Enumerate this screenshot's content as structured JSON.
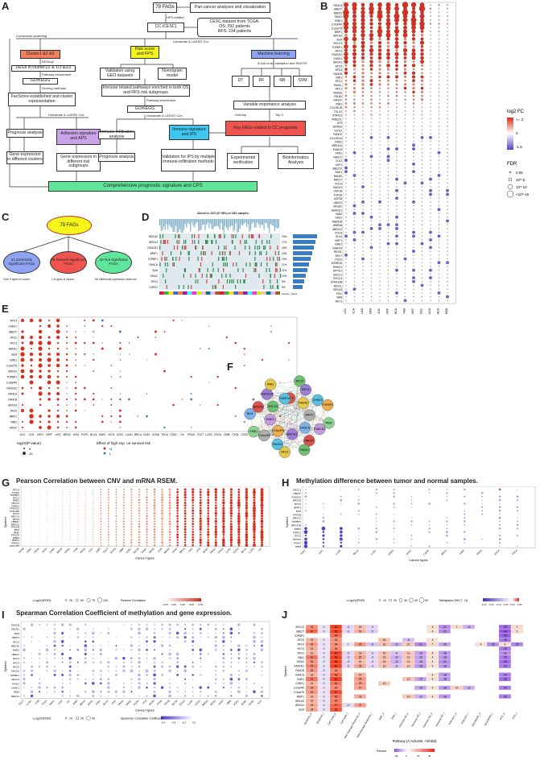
{
  "panels": {
    "A": "A",
    "B": "B",
    "C": "C",
    "D": "D",
    "E": "E",
    "F": "F",
    "G": "G",
    "H": "H",
    "I": "I",
    "J": "J"
  },
  "flow": {
    "top": "79 FAGs",
    "pancancer": "Pan-cancer analyses and visualization",
    "hpv": "HPV-related",
    "cc": "CC (CESC)",
    "tcga": "CESC dataset from TCGA:\nOS: 292 patients\nRFS: 234 patients",
    "consensus": "Consensus clustering",
    "uni_lasso1": "Univariate & LASSO Cox",
    "cluster": "Cluster1 &2 &3",
    "riskscore": "Risk score and FPS",
    "ml": "Machine learning",
    "cv": "5-fold cross validation and SMOTE",
    "deseq": "DESeq2",
    "degs": "DEGs in cluster1/2 & 1/3 &2/3",
    "pathway1": "Pathway enrichment",
    "gokegg1": "GO/KEGG",
    "scoring": "Scoring methods",
    "facscore": "FacScore established and cluster representation",
    "uni_lasso2": "Univariate & LASSO Cox",
    "validation_geo": "Validation using GEO datasets",
    "nomogram": "Nomogram model",
    "immune_related": "Immune related pathways enriched in both OS and RFS risk subgroups",
    "pathway2": "Pathway enrichment",
    "gokegg2": "GO/KEGG",
    "uni_lasso3": "Univariate & LASSO Cox",
    "dt": "DT",
    "rf": "RF",
    "nb": "NB",
    "svm": "SVM",
    "varimp": "Variable importance analysis",
    "overlap": "Overlap",
    "top3": "Top 3",
    "key_fags": "Key FAGs related to CC prognosis",
    "prognosis1": "Prognosis analysis",
    "adhesion": "Adhesion signature and APS",
    "immune_infil": "Immune infiltration analysis",
    "immune_sig": "Immune signature and IPS",
    "expgene1": "Gene expression in different clusters",
    "expgene2": "Gene expression in different risk subgroups",
    "prognosis2": "Prognosis analysis",
    "validation_ips": "Validation for IPS by multiple immune infiltration methods",
    "experimental": "Experimental verification",
    "bioinfo": "Bioinformatics Analysis",
    "comprehensive": "Comprehensive prognostic signature and CPS"
  },
  "panelC": {
    "center": "79 FAGs",
    "left": "21 Extremely significant FAGs",
    "mid": "48 General significant FAGs",
    "right": "10 Not significant FAGs",
    "left_note": "Over 9 types of cancer",
    "mid_note": "1-8 types of cancer",
    "right_note": "No differential expression observed"
  },
  "panelD": {
    "title": "Altered in 1197 (87.98%) of 1361 samples.",
    "genes": [
      "BRCA2",
      "BRCA1",
      "FANCD2",
      "BRIP1",
      "TOPBP1",
      "FANCA",
      "BLM",
      "FANCI",
      "RFC4",
      "CHEK1"
    ],
    "pcts": [
      "20%",
      "17%",
      "15%",
      "13%",
      "12%",
      "11%",
      "11%",
      "10%",
      "9%",
      "9%"
    ],
    "side_label": "Cancer_Types"
  },
  "panelB": {
    "genes": [
      "FANCA",
      "UBE2T",
      "RAD51",
      "FANCI",
      "EME1",
      "C19orf40",
      "C16orf75",
      "BRIP1",
      "BRCA2",
      "BLM",
      "XRCC3",
      "TOPBP1",
      "RFC4",
      "FANCD2",
      "CHEK1",
      "BRCA1",
      "RFC5",
      "RFC3",
      "FANCB",
      "RMI1",
      "RFC2",
      "FANCL",
      "RFC1",
      "RAD9A",
      "PALB2",
      "FANCF",
      "RMI2",
      "DCLRE1B",
      "TELO2",
      "STRA13",
      "PMS2CL",
      "ATR",
      "ZBTB32",
      "GIYD2",
      "FANCE",
      "DCLRE1A",
      "PMS2",
      "MRE11A",
      "FANCM",
      "FAN1",
      "FANCC",
      "CLK2",
      "USP1",
      "UBE2T2",
      "RAD1",
      "RAD50",
      "RAD17",
      "POLH",
      "BACH1",
      "USP1B",
      "TOP3A",
      "USP28",
      "UBAX2",
      "MUS81",
      "NSMCE1",
      "XAB2",
      "HUS1",
      "RAD51B",
      "WDR48",
      "UBE2V2",
      "POLN",
      "SLX4",
      "MHF1",
      "EME2",
      "FAAP24",
      "REV3L",
      "REV7",
      "POLK",
      "MTMR15",
      "RHNO1",
      "APITD1",
      "ERCC1",
      "ERCC4",
      "STRA13B",
      "REV1L",
      "BRCA3",
      "POLI",
      "NBN",
      "REV1"
    ],
    "cancers": [
      "LUSC",
      "BLCA",
      "LUAD",
      "COAD",
      "LIHC",
      "KIRP",
      "BRCA",
      "STAD",
      "KIRC",
      "HNSC",
      "KICH",
      "THCA",
      "PRAD"
    ],
    "legend_fc": "log2 FC",
    "legend_fc_hi": ">= 3",
    "legend_fc_mid": "0",
    "legend_fc_lo": "-1.5",
    "legend_fdr": "FDR",
    "legend_fdr_vals": [
      "0.05",
      "10^-5",
      "10^-10",
      "<10^-15"
    ]
  },
  "panelE": {
    "genes": [
      "RFC4",
      "CHEK1",
      "UBE2T",
      "RFC2",
      "RFC3",
      "RAD51",
      "BLM",
      "EME1",
      "C16orf75",
      "BRCA1",
      "TOPBP1",
      "C19orf40",
      "FANCD2",
      "FANCA",
      "FANCB",
      "BRCA2",
      "RFC5",
      "BRIP1",
      "RMI2",
      "FANCI"
    ],
    "cancers": [
      "ACC",
      "LGG",
      "KIRC",
      "KIRP",
      "LIHC",
      "MESO",
      "UVM",
      "PCPG",
      "BLCA",
      "SARC",
      "KICH",
      "UCEC",
      "LUAD",
      "BRCA",
      "DLBC",
      "COAD",
      "THCA",
      "STAD",
      "OV",
      "PRAD",
      "TGCT",
      "LUSC",
      "ESCA",
      "GBM",
      "CHOL",
      "CESC",
      "PAAD",
      "THYM",
      "READ",
      "UCS",
      "SKCM"
    ],
    "legend_size": "-log10(P-value)",
    "legend_size_vals": [
      "5",
      "10"
    ],
    "legend_effect": "Effect of high exp. on survival risk",
    "legend_effect_vals": [
      "H",
      "L"
    ]
  },
  "panelF": {
    "nodes": [
      "RFC3",
      "RFC5",
      "RFC4",
      "RAD51",
      "CHEK1",
      "TOPBP1",
      "BRIP1",
      "RMI2",
      "FANCD2",
      "FANCA",
      "UBE2T",
      "FANCI",
      "BRCA1",
      "RFC2",
      "FANCB",
      "C16orf75",
      "C19orf40",
      "EME1",
      "EME2",
      "BLM",
      "BRCA2",
      "XRCC3",
      "FANCD2B",
      "RMI1",
      "FAAP24"
    ]
  },
  "panelG": {
    "title": "Pearson Correlation between CNV and mRNA RSEM.",
    "genes": [
      "RFC4",
      "FANCI",
      "TOPBP1",
      "RFC3",
      "EME1",
      "XRCC3",
      "CHEK1",
      "FANCD2",
      "C19orf40",
      "RFC2",
      "BRCA1",
      "RFC5",
      "UBE2T",
      "BRCA2",
      "FANCB",
      "BLM",
      "RMI2",
      "FANCA",
      "EME2",
      "BRIP1",
      "RAD51",
      "C16orf75"
    ],
    "xlabel": "Cancer types",
    "ylabel": "Symbol",
    "legend_size": "-Log10(FDR)",
    "legend_size_vals": [
      "25",
      "50",
      "75",
      "100"
    ],
    "legend_color": "Pearson Correlation",
    "legend_color_vals": [
      "-0.25",
      "0.00",
      "0.25",
      "0.50",
      "0.75"
    ],
    "cancers": [
      "THYM",
      "KIRC",
      "THCA",
      "KICH",
      "DLBC",
      "READ",
      "CHOL",
      "UVM",
      "PAAD",
      "ACC",
      "KIRP",
      "TGCT",
      "PCPG",
      "GBM",
      "UCEC",
      "SKCM",
      "SARC",
      "PRAD",
      "LGG",
      "MESO",
      "STAD",
      "BRCA",
      "LIHC",
      "UCS",
      "CESC",
      "HNSC",
      "ESCA",
      "LUSC",
      "COAD",
      "BLCA",
      "LUAD",
      "OV"
    ]
  },
  "panelH": {
    "title": "Methylation difference between tumor and normal samples.",
    "genes": [
      "XRCC3",
      "UBE2T",
      "FANCD2",
      "BRCA2",
      "RFC2",
      "BRIP1",
      "BLM",
      "FANCB",
      "BRCA1",
      "TOPBP1",
      "BRCA1B",
      "EME1",
      "CHEK1",
      "RFC5",
      "FANCA",
      "FANCI",
      "RMI2"
    ],
    "cancers": [
      "KIRC",
      "LIHC",
      "LUAD",
      "BLCA",
      "LUSC",
      "HNSC",
      "UCEC",
      "COAD",
      "BRCA",
      "KIRP",
      "PRAD",
      "ESCA",
      "THCA"
    ],
    "xlabel": "Cancer types",
    "ylabel": "Symbol",
    "legend_size": "-Log10(FDR)",
    "legend_size_vals": [
      "10",
      "20",
      "30",
      "40",
      "50"
    ],
    "legend_color": "Methylation Diff (T - N)",
    "legend_color_vals": [
      "-0.20",
      "-0.15",
      "-0.10",
      "-0.05",
      "0.00",
      "0.05"
    ]
  },
  "panelI": {
    "title": "Spearman Correlation Coefficient of methylation and gene expression.",
    "genes": [
      "FANCB",
      "RAD51",
      "BLM",
      "BRIP1",
      "RFC2",
      "BRCA2",
      "EME1",
      "UBE2T",
      "RFC4",
      "RFC3",
      "RFC5",
      "FANCA",
      "TOPBP1",
      "XRCC3",
      "FANCI",
      "CHEK1",
      "RMI2",
      "BRCA1"
    ],
    "xlabel": "Cancer types",
    "ylabel": "Symbol",
    "legend_size": "-Log10(FDR)",
    "legend_size_vals": [
      "10",
      "20",
      "30"
    ],
    "legend_color": "Spearman Correlation Coefficient",
    "legend_color_vals": [
      "-0.6",
      "-0.4",
      "-0.2",
      "0.0"
    ],
    "cancers": [
      "TGCT",
      "LUSC",
      "UVM",
      "THCA",
      "SARC",
      "LGG",
      "OV",
      "KIRP",
      "BRCA",
      "CESC",
      "KIRC",
      "BLCA",
      "LIHC",
      "PRAD",
      "HNSC",
      "PCPG",
      "UCS",
      "PAAD",
      "STAD",
      "THYM",
      "SKCM",
      "ESCA",
      "LUAD",
      "COAD",
      "MESO",
      "READ",
      "KICH",
      "GBM",
      "UCEC",
      "DLBC",
      "CHOL",
      "ACC"
    ]
  },
  "panelJ": {
    "genes": [
      "XRCC3",
      "UBE2T",
      "TOPBP1",
      "RFC5",
      "RFC4",
      "RFC3",
      "RFC2",
      "RMI2",
      "FANCI",
      "FANCD2",
      "FANCB",
      "FANCA",
      "EME1",
      "CHEK1",
      "C19orf40",
      "C16orf75",
      "BRIP1",
      "BRCA2",
      "BRCA1",
      "BLM"
    ],
    "pathways": [
      "Apoptosis_A",
      "Apoptosis_I",
      "Cell Cycle_A",
      "Cell Cycle_I",
      "DNA Damage Response_A",
      "DNA Damage Response_I",
      "EMT_A",
      "EMT_I",
      "Hormone AR_A",
      "Hormone AR_I",
      "Hormone ER_A",
      "Hormone ER_I",
      "PI3K/AKT_A",
      "PI3K/AKT_I",
      "RAS/MAPK_A",
      "RAS/MAPK_I",
      "RTK_A",
      "RTK_I"
    ],
    "ylabel": "Symbol",
    "legend": "Pathway (A:Activate; I:Inhibit)",
    "legend_percent": "Percent",
    "legend_vals": [
      "-20",
      "0",
      "20",
      "40"
    ],
    "values": [
      [
        "32",
        "0",
        "60",
        "-3",
        "16",
        "-3",
        "",
        "",
        "",
        "",
        "4",
        "-21",
        "7",
        "-12",
        "",
        "",
        "-29",
        "7"
      ],
      [
        "47",
        "0",
        "66",
        "-3",
        "20",
        "-5",
        "",
        "",
        "",
        "",
        "4",
        "-21",
        "",
        "",
        "",
        "",
        "-34",
        "5"
      ],
      [
        "",
        "",
        "44",
        "",
        "",
        "",
        "",
        "",
        "",
        "",
        "",
        "",
        "",
        "",
        "",
        "",
        "-32",
        ""
      ],
      [
        "19",
        "0",
        "32",
        "",
        "",
        "",
        "16",
        "",
        "-8",
        "",
        "4",
        "",
        "",
        "",
        "",
        "",
        "-26",
        ""
      ],
      [
        "29",
        "0",
        "34",
        "0",
        "29",
        "-8",
        "16",
        "-12",
        "13",
        "-21",
        "7",
        "-15",
        "",
        "",
        "4",
        "-21",
        "4",
        "-22"
      ],
      [
        "22",
        "0",
        "34",
        "",
        "",
        "",
        "",
        "",
        "",
        "",
        "",
        "",
        "",
        "",
        "",
        "",
        "-25",
        ""
      ],
      [
        "19",
        "0",
        "60",
        "-3",
        "19",
        "-3",
        "15",
        "-8",
        "13",
        "-15",
        "4",
        "-18",
        "",
        "",
        "",
        "",
        "-21",
        ""
      ],
      [
        "41",
        "0",
        "61",
        "-3",
        "25",
        "-3",
        "16",
        "-12",
        "13",
        "-15",
        "4",
        "-18",
        "",
        "",
        "",
        "",
        "-25",
        ""
      ],
      [
        "30",
        "0",
        "66",
        "-3",
        "16",
        "-3",
        "16",
        "-12",
        "13",
        "-15",
        "4",
        "-21",
        "",
        "",
        "",
        "",
        "-29",
        ""
      ],
      [
        "37",
        "0",
        "60",
        "-3",
        "25",
        "-3",
        "15",
        "-8",
        "13",
        "-18",
        "4",
        "-18",
        "",
        "",
        "",
        "",
        "-25",
        ""
      ],
      [
        "29",
        "0",
        "34",
        "",
        "",
        "",
        "",
        "",
        "",
        "",
        "",
        "",
        "",
        "",
        "",
        "",
        "",
        ""
      ],
      [
        "19",
        "0",
        "46",
        "",
        "19",
        "",
        "",
        "",
        "",
        "",
        "4",
        "-18",
        "",
        "",
        "",
        "",
        "-25",
        ""
      ],
      [
        "41",
        "0",
        "61",
        "",
        "29",
        "",
        "",
        "",
        "13",
        "-15",
        "4",
        "-18",
        "",
        "",
        "",
        "",
        "-28",
        ""
      ],
      [
        "19",
        "0",
        "42",
        "",
        "29",
        "",
        "13",
        "",
        "",
        "",
        "",
        "",
        "",
        "",
        "",
        "",
        "",
        ""
      ],
      [
        "29",
        "0",
        "34",
        "",
        "27",
        "",
        "",
        "",
        "",
        "-15",
        "4",
        "-18",
        "10",
        "-12",
        "",
        "",
        "-25",
        ""
      ],
      [
        "29",
        "0",
        "57",
        "",
        "",
        "",
        "",
        "",
        "",
        "",
        "",
        "",
        "",
        "",
        "",
        "",
        "",
        ""
      ],
      [
        "19",
        "0",
        "42",
        "",
        "22",
        "",
        "",
        "",
        "13",
        "-12",
        "4",
        "-18",
        "",
        "",
        "",
        "",
        "-25",
        ""
      ],
      [
        "19",
        "0",
        "39",
        "",
        "",
        "",
        "",
        "",
        "",
        "",
        "",
        "",
        "",
        "",
        "",
        "",
        "",
        ""
      ],
      [
        "23",
        "0",
        "47",
        "-3",
        "27",
        "",
        "",
        "",
        "",
        "",
        "",
        "",
        "",
        "",
        "",
        "",
        "",
        ""
      ],
      [
        "24",
        "0",
        "52",
        "",
        "",
        "",
        "",
        "",
        "",
        "",
        "",
        "",
        "",
        "",
        "",
        "",
        "",
        ""
      ]
    ]
  }
}
